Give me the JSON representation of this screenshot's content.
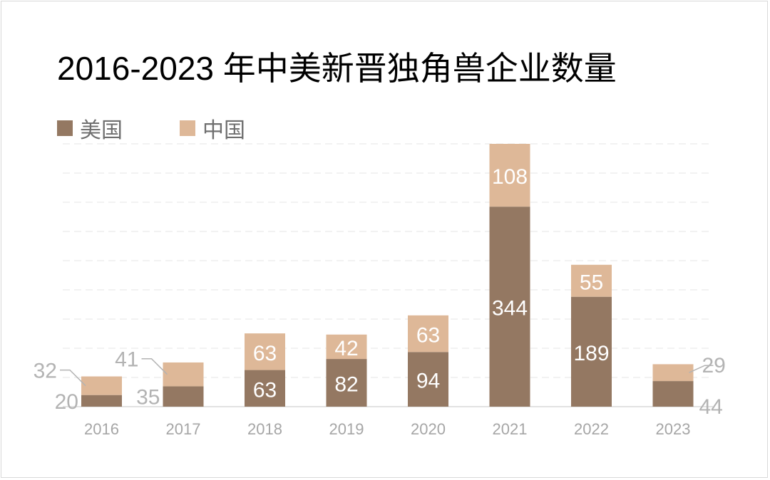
{
  "title": "2016-2023 年中美新晋独角兽企业数量",
  "legend": {
    "us": "美国",
    "cn": "中国"
  },
  "colors": {
    "us": "#947862",
    "cn": "#deb898",
    "axis": "#d9d9d9",
    "grid": "#e6e6e6",
    "tick": "#a6a6a6",
    "label_in": "#ffffff",
    "label_out": "#b3b3b3"
  },
  "chart_data": {
    "type": "bar",
    "stacked": true,
    "categories": [
      "2016",
      "2017",
      "2018",
      "2019",
      "2020",
      "2021",
      "2022",
      "2023"
    ],
    "series": [
      {
        "name": "美国",
        "values": [
          20,
          35,
          63,
          82,
          94,
          344,
          189,
          44
        ]
      },
      {
        "name": "中国",
        "values": [
          32,
          41,
          63,
          42,
          63,
          108,
          55,
          29
        ]
      }
    ],
    "title": "2016-2023 年中美新晋独角兽企业数量",
    "xlabel": "",
    "ylabel": "",
    "ylim": [
      0,
      452
    ],
    "grid": true,
    "legend_position": "top-left"
  }
}
